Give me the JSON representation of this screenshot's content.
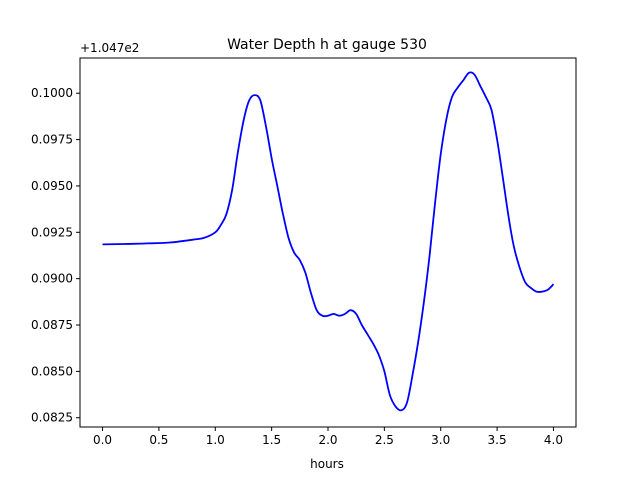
{
  "chart_data": {
    "type": "line",
    "title": "Water Depth h at gauge 530",
    "xlabel": "hours",
    "ylabel": "",
    "offset_text": "+1.047e2",
    "xlim": [
      -0.2,
      4.2
    ],
    "ylim": [
      0.082,
      0.1019
    ],
    "xticks": [
      0.0,
      0.5,
      1.0,
      1.5,
      2.0,
      2.5,
      3.0,
      3.5,
      4.0
    ],
    "xtick_labels": [
      "0.0",
      "0.5",
      "1.0",
      "1.5",
      "2.0",
      "2.5",
      "3.0",
      "3.5",
      "4.0"
    ],
    "yticks": [
      0.0825,
      0.085,
      0.0875,
      0.09,
      0.0925,
      0.095,
      0.0975,
      0.1
    ],
    "ytick_labels": [
      "0.0825",
      "0.0850",
      "0.0875",
      "0.0900",
      "0.0925",
      "0.0950",
      "0.0975",
      "0.1000"
    ],
    "grid": false,
    "series": [
      {
        "color": "#0000ff",
        "x": [
          0.0,
          0.2,
          0.4,
          0.6,
          0.8,
          0.9,
          1.0,
          1.05,
          1.1,
          1.15,
          1.2,
          1.25,
          1.3,
          1.35,
          1.4,
          1.45,
          1.5,
          1.55,
          1.6,
          1.65,
          1.7,
          1.75,
          1.8,
          1.85,
          1.9,
          1.95,
          2.0,
          2.05,
          2.1,
          2.15,
          2.2,
          2.25,
          2.3,
          2.35,
          2.4,
          2.45,
          2.5,
          2.55,
          2.6,
          2.65,
          2.7,
          2.75,
          2.8,
          2.85,
          2.9,
          2.95,
          3.0,
          3.05,
          3.1,
          3.15,
          3.2,
          3.25,
          3.3,
          3.35,
          3.4,
          3.45,
          3.5,
          3.55,
          3.6,
          3.65,
          3.7,
          3.75,
          3.8,
          3.85,
          3.9,
          3.95,
          4.0
        ],
        "y": [
          0.09185,
          0.09187,
          0.0919,
          0.09195,
          0.0921,
          0.0922,
          0.0925,
          0.0929,
          0.0935,
          0.0948,
          0.0968,
          0.0985,
          0.0996,
          0.0999,
          0.0996,
          0.0982,
          0.0965,
          0.095,
          0.0935,
          0.0922,
          0.0914,
          0.091,
          0.0903,
          0.0892,
          0.0883,
          0.088,
          0.088,
          0.0881,
          0.088,
          0.0881,
          0.0883,
          0.0881,
          0.0875,
          0.087,
          0.0865,
          0.0859,
          0.085,
          0.0837,
          0.0831,
          0.0829,
          0.0833,
          0.0848,
          0.0866,
          0.0887,
          0.0912,
          0.0941,
          0.0967,
          0.0986,
          0.0998,
          0.1003,
          0.1007,
          0.1011,
          0.101,
          0.1004,
          0.0998,
          0.0991,
          0.0975,
          0.0955,
          0.0934,
          0.0917,
          0.0906,
          0.0898,
          0.0895,
          0.0893,
          0.0893,
          0.0894,
          0.0897
        ]
      }
    ]
  }
}
